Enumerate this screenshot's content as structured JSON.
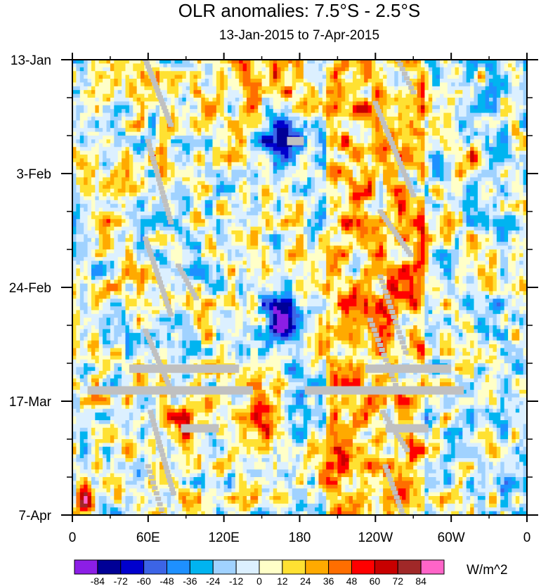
{
  "chart_data": {
    "type": "heatmap",
    "title": "OLR anomalies: 7.5°S - 2.5°S",
    "subtitle": "13-Jan-2015 to 7-Apr-2015",
    "xlabel": "",
    "ylabel": "",
    "x_ticks": [
      "0",
      "60E",
      "120E",
      "180",
      "120W",
      "60W",
      "0"
    ],
    "x_range_deg_east": [
      0,
      360
    ],
    "y_ticks": [
      "13-Jan",
      "3-Feb",
      "24-Feb",
      "17-Mar",
      "7-Apr"
    ],
    "y_range": [
      "2015-01-13",
      "2015-04-07"
    ],
    "y_direction": "time increases downward",
    "colorbar": {
      "unit": "W/m^2",
      "levels": [
        -84,
        -72,
        -60,
        -48,
        -36,
        -24,
        -12,
        0,
        12,
        24,
        36,
        48,
        60,
        72,
        84
      ],
      "colors": [
        "#8c1ee6",
        "#000096",
        "#0000cd",
        "#3c64e6",
        "#1e90ff",
        "#00b4f0",
        "#a0d2ff",
        "#dcf0ff",
        "#ffffc8",
        "#ffe132",
        "#ffaa00",
        "#ff6e00",
        "#ff0000",
        "#c80000",
        "#a02828",
        "#ff64c8"
      ],
      "missing_color": "#c0c0c0",
      "placement": "bottom"
    },
    "features": [
      {
        "region": "Indian Ocean / Maritime Continent (40E-110E)",
        "pattern": "alternating positive and negative anomalies"
      },
      {
        "region": "Central Pacific (150E-180)",
        "pattern": "strong negative anomalies mid-January to early February and early March"
      },
      {
        "region": "Eastern Pacific (160W-100W)",
        "pattern": "positive anomalies"
      },
      {
        "region": "Western Indian Ocean near 0-10E",
        "pattern": "strong positive anomaly early April"
      }
    ]
  }
}
